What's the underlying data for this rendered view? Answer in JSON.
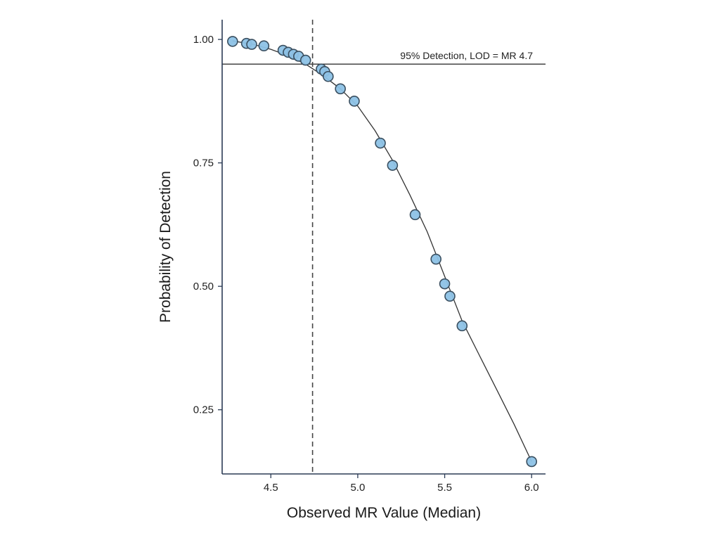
{
  "chart_data": {
    "type": "scatter",
    "xlabel": "Observed MR Value (Median)",
    "ylabel": "Probability of Detection",
    "xlim": [
      4.22,
      6.08
    ],
    "ylim": [
      0.12,
      1.04
    ],
    "x_ticks": [
      4.5,
      5.0,
      5.5,
      6.0
    ],
    "x_tick_labels": [
      "4.5",
      "5.0",
      "5.5",
      "6.0"
    ],
    "y_ticks": [
      0.25,
      0.5,
      0.75,
      1.0
    ],
    "y_tick_labels": [
      "0.25",
      "0.50",
      "0.75",
      "1.00"
    ],
    "grid": false,
    "hline": {
      "y": 0.95,
      "label": "95% Detection, LOD = MR 4.7"
    },
    "vline": {
      "x": 4.74,
      "style": "dashed"
    },
    "fit_curve": {
      "x": [
        4.28,
        4.4,
        4.5,
        4.6,
        4.7,
        4.8,
        4.9,
        5.0,
        5.1,
        5.2,
        5.3,
        5.4,
        5.5,
        5.6,
        5.7,
        5.8,
        5.9,
        6.0
      ],
      "y": [
        0.997,
        0.99,
        0.98,
        0.967,
        0.95,
        0.927,
        0.9,
        0.865,
        0.815,
        0.755,
        0.685,
        0.61,
        0.52,
        0.43,
        0.36,
        0.29,
        0.22,
        0.145
      ]
    },
    "series": [
      {
        "x": [
          4.28,
          4.36,
          4.39,
          4.46,
          4.57,
          4.6,
          4.63,
          4.66,
          4.7,
          4.79,
          4.81,
          4.83,
          4.9,
          4.98,
          5.13,
          5.2,
          5.33,
          5.45,
          5.5,
          5.53,
          5.6,
          6.0
        ],
        "y": [
          0.996,
          0.992,
          0.99,
          0.987,
          0.978,
          0.974,
          0.97,
          0.966,
          0.958,
          0.94,
          0.935,
          0.925,
          0.9,
          0.875,
          0.79,
          0.745,
          0.645,
          0.555,
          0.505,
          0.48,
          0.42,
          0.145
        ]
      }
    ]
  }
}
